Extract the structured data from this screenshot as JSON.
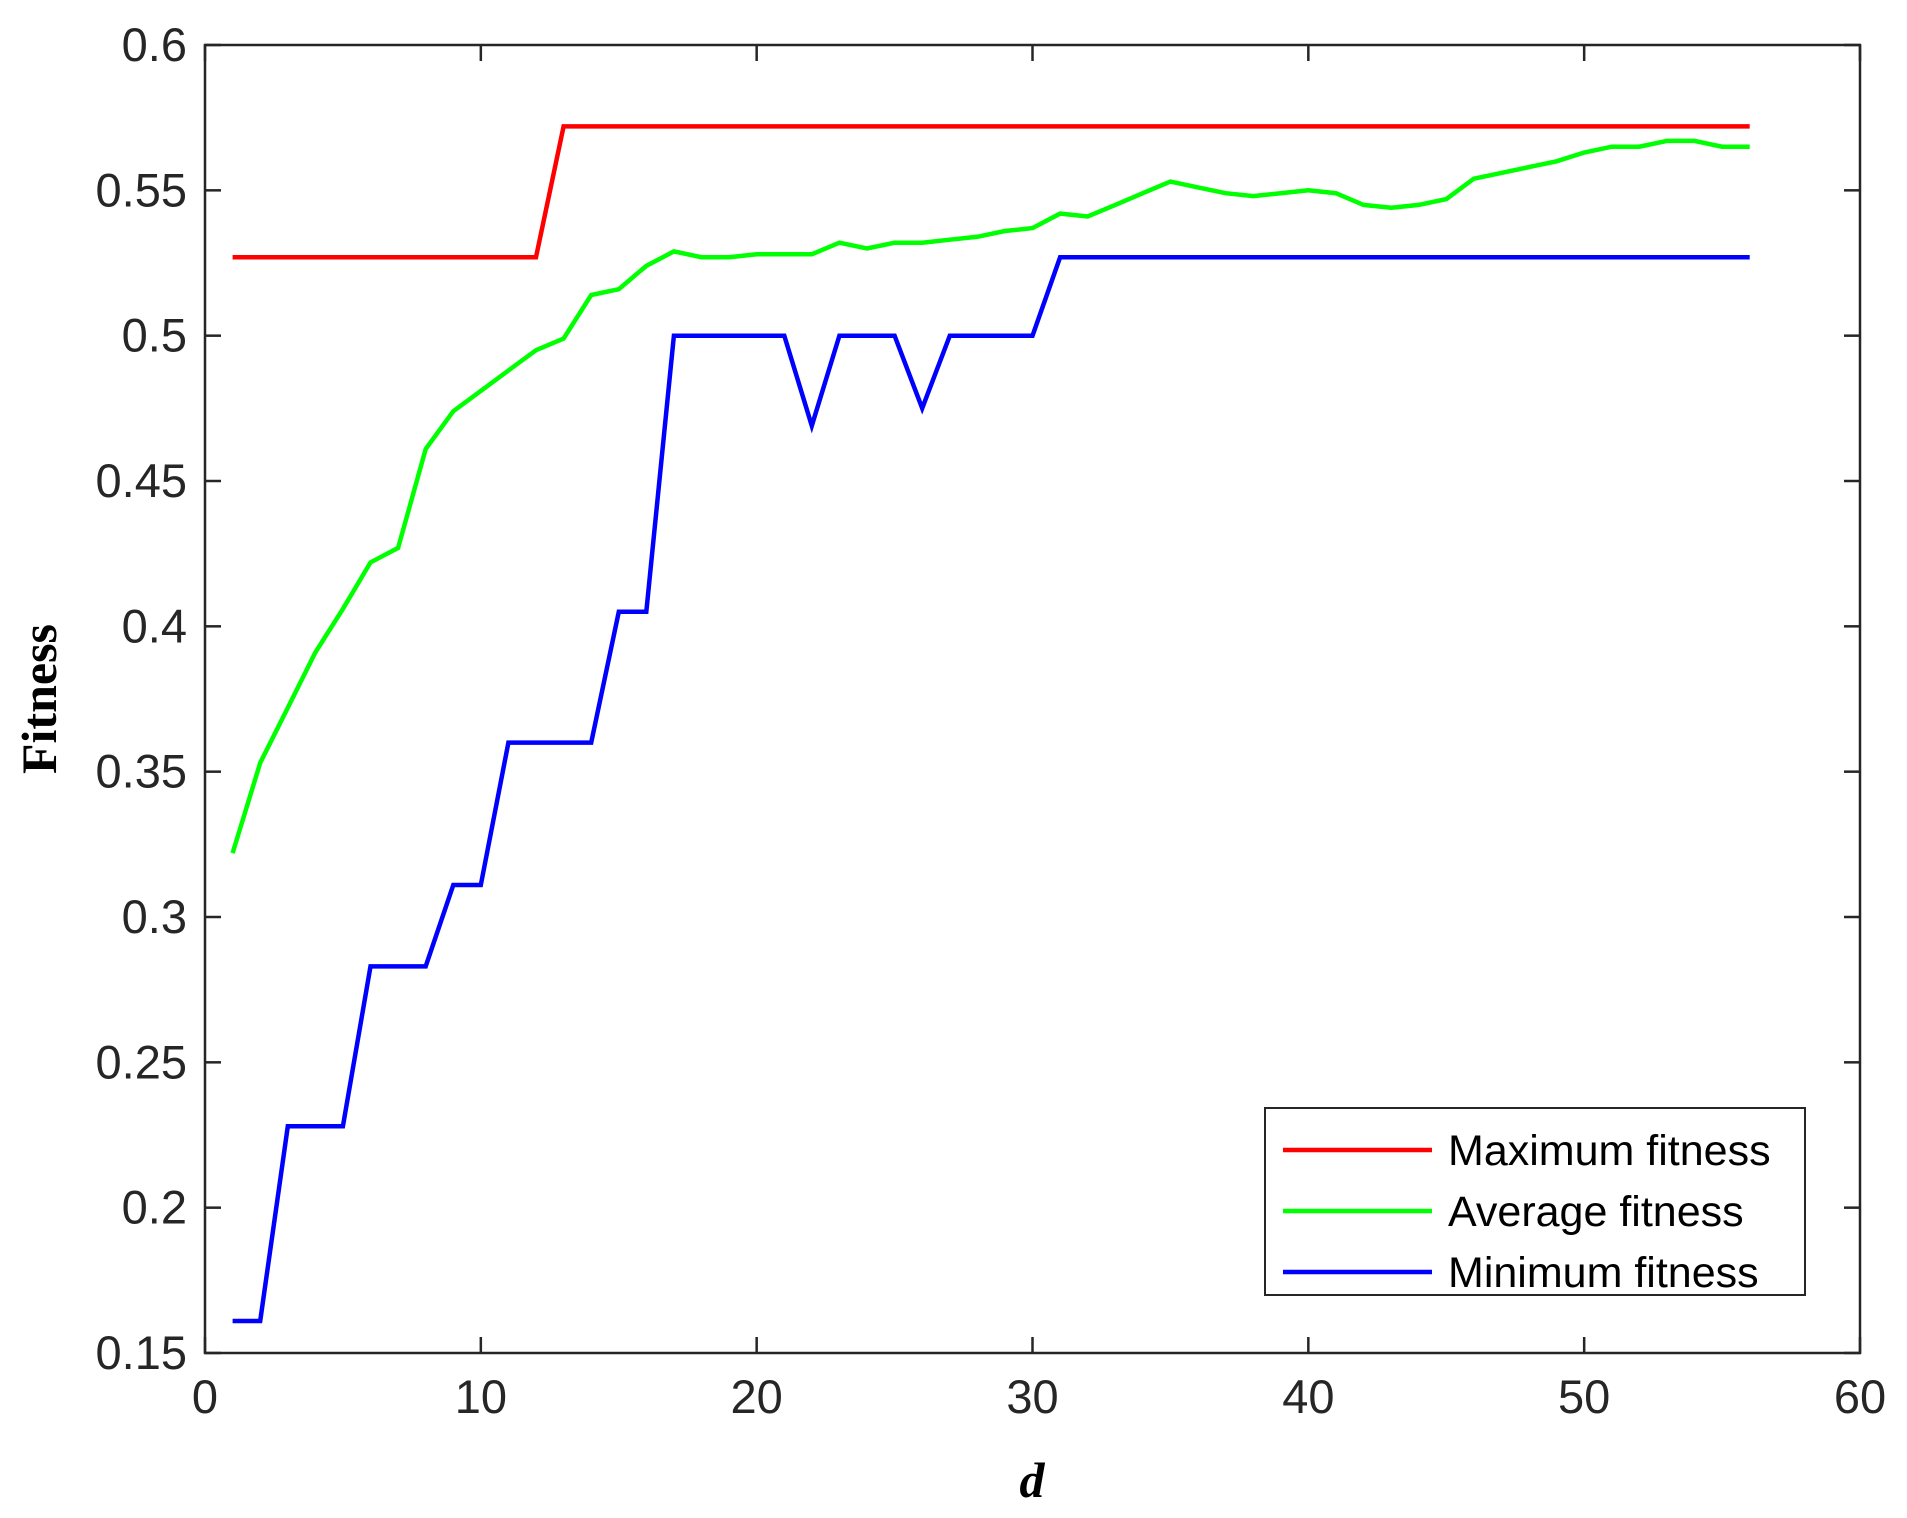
{
  "chart_data": {
    "type": "line",
    "title": "",
    "xlabel": "d",
    "ylabel": "Fitness",
    "xlim": [
      0,
      60
    ],
    "ylim": [
      0.15,
      0.6
    ],
    "x_ticks": [
      "0",
      "10",
      "20",
      "30",
      "40",
      "50",
      "60"
    ],
    "y_ticks": [
      "0.15",
      "0.2",
      "0.25",
      "0.3",
      "0.35",
      "0.4",
      "0.45",
      "0.5",
      "0.55",
      "0.6"
    ],
    "grid": false,
    "legend_position": "bottom-right",
    "x": [
      1,
      2,
      3,
      4,
      5,
      6,
      7,
      8,
      9,
      10,
      11,
      12,
      13,
      14,
      15,
      16,
      17,
      18,
      19,
      20,
      21,
      22,
      23,
      24,
      25,
      26,
      27,
      28,
      29,
      30,
      31,
      32,
      33,
      34,
      35,
      36,
      37,
      38,
      39,
      40,
      41,
      42,
      43,
      44,
      45,
      46,
      47,
      48,
      49,
      50,
      51,
      52,
      53,
      54,
      55,
      56
    ],
    "series": [
      {
        "name": "Maximum fitness",
        "color": "#ff0000",
        "values": [
          0.527,
          0.527,
          0.527,
          0.527,
          0.527,
          0.527,
          0.527,
          0.527,
          0.527,
          0.527,
          0.527,
          0.527,
          0.572,
          0.572,
          0.572,
          0.572,
          0.572,
          0.572,
          0.572,
          0.572,
          0.572,
          0.572,
          0.572,
          0.572,
          0.572,
          0.572,
          0.572,
          0.572,
          0.572,
          0.572,
          0.572,
          0.572,
          0.572,
          0.572,
          0.572,
          0.572,
          0.572,
          0.572,
          0.572,
          0.572,
          0.572,
          0.572,
          0.572,
          0.572,
          0.572,
          0.572,
          0.572,
          0.572,
          0.572,
          0.572,
          0.572,
          0.572,
          0.572,
          0.572,
          0.572,
          0.572
        ]
      },
      {
        "name": "Average fitness",
        "color": "#00ff00",
        "values": [
          0.322,
          0.353,
          0.372,
          0.391,
          0.406,
          0.422,
          0.427,
          0.461,
          0.474,
          0.481,
          0.488,
          0.495,
          0.499,
          0.514,
          0.516,
          0.524,
          0.529,
          0.527,
          0.527,
          0.528,
          0.528,
          0.528,
          0.532,
          0.53,
          0.532,
          0.532,
          0.533,
          0.534,
          0.536,
          0.537,
          0.542,
          0.541,
          0.545,
          0.549,
          0.553,
          0.551,
          0.549,
          0.548,
          0.549,
          0.55,
          0.549,
          0.545,
          0.544,
          0.545,
          0.547,
          0.554,
          0.556,
          0.558,
          0.56,
          0.563,
          0.565,
          0.565,
          0.567,
          0.567,
          0.565,
          0.565
        ]
      },
      {
        "name": "Minimum fitness",
        "color": "#0000ff",
        "values": [
          0.161,
          0.161,
          0.228,
          0.228,
          0.228,
          0.283,
          0.283,
          0.283,
          0.311,
          0.311,
          0.36,
          0.36,
          0.36,
          0.36,
          0.405,
          0.405,
          0.5,
          0.5,
          0.5,
          0.5,
          0.5,
          0.469,
          0.5,
          0.5,
          0.5,
          0.475,
          0.5,
          0.5,
          0.5,
          0.5,
          0.527,
          0.527,
          0.527,
          0.527,
          0.527,
          0.527,
          0.527,
          0.527,
          0.527,
          0.527,
          0.527,
          0.527,
          0.527,
          0.527,
          0.527,
          0.527,
          0.527,
          0.527,
          0.527,
          0.527,
          0.527,
          0.527,
          0.527,
          0.527,
          0.527,
          0.527
        ]
      }
    ]
  }
}
